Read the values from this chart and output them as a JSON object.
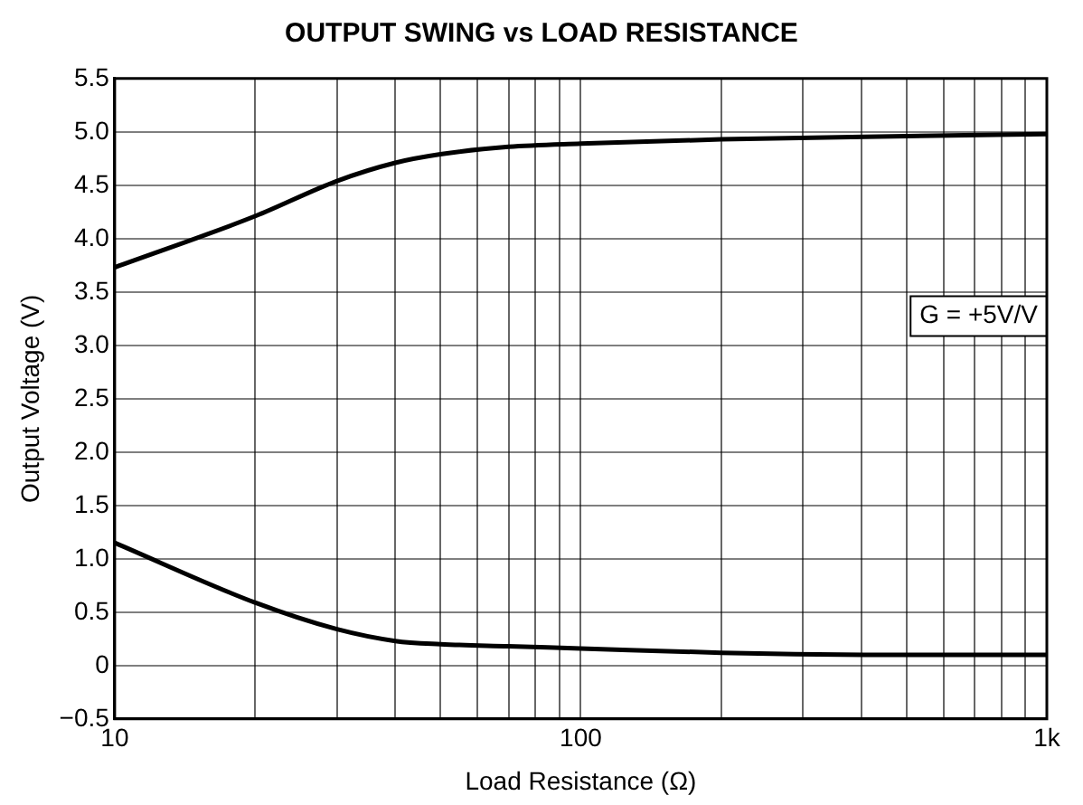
{
  "chart_data": {
    "type": "line",
    "title": "OUTPUT SWING vs LOAD RESISTANCE",
    "xlabel": "Load Resistance (Ω)",
    "ylabel": "Output Voltage (V)",
    "log": "x",
    "grid": true,
    "legend": false,
    "marker": "none",
    "line_style": "solid",
    "annotations": [
      "G = +5V/V"
    ],
    "xlim": [
      10,
      1000
    ],
    "xticks": [
      10,
      {
        "value": 20,
        "label": null
      },
      {
        "value": 30,
        "label": null
      },
      {
        "value": 40,
        "label": null
      },
      {
        "value": 50,
        "label": null
      },
      {
        "value": 60,
        "label": null
      },
      {
        "value": 70,
        "label": null
      },
      {
        "value": 80,
        "label": null
      },
      {
        "value": 90,
        "label": null
      },
      100,
      {
        "value": 200,
        "label": null
      },
      {
        "value": 300,
        "label": null
      },
      {
        "value": 400,
        "label": null
      },
      {
        "value": 500,
        "label": null
      },
      {
        "value": 600,
        "label": null
      },
      {
        "value": 700,
        "label": null
      },
      {
        "value": 800,
        "label": null
      },
      {
        "value": 900,
        "label": null
      },
      {
        "value": 1000,
        "label": "1k"
      }
    ],
    "ylim": [
      -0.5,
      5.5
    ],
    "yticks": [
      {
        "value": -0.5,
        "label": "−0.5"
      },
      0,
      0.5,
      {
        "value": 1,
        "label": "1.0"
      },
      1.5,
      {
        "value": 2,
        "label": "2.0"
      },
      2.5,
      {
        "value": 3,
        "label": "3.0"
      },
      3.5,
      {
        "value": 4,
        "label": "4.0"
      },
      4.5,
      {
        "value": 5,
        "label": "5.0"
      },
      5.5
    ],
    "x": [
      10,
      20,
      30,
      40,
      50,
      70,
      100,
      200,
      500,
      1000
    ],
    "series": [
      {
        "color": "#000000",
        "values": [
          3.73,
          4.21,
          4.54,
          4.71,
          4.79,
          4.86,
          4.89,
          4.93,
          4.96,
          4.98
        ]
      },
      {
        "color": "#000000",
        "values": [
          1.15,
          0.59,
          0.34,
          0.23,
          0.2,
          0.18,
          0.16,
          0.12,
          0.1,
          0.1
        ]
      }
    ]
  }
}
